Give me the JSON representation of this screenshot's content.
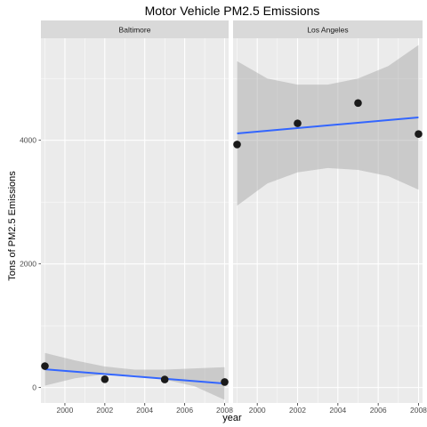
{
  "chart_data": {
    "type": "scatter",
    "title": "Motor Vehicle PM2.5 Emissions",
    "xlabel": "year",
    "ylabel": "Tons of PM2.5 Emissions",
    "xlim": [
      1998.8,
      2008.2
    ],
    "ylim": [
      -250,
      5650
    ],
    "x_ticks": [
      2000,
      2002,
      2004,
      2006,
      2008
    ],
    "y_ticks": [
      0,
      2000,
      4000
    ],
    "grid": true,
    "colors": {
      "panel_bg": "#ebebeb",
      "grid": "#ffffff",
      "strip_bg": "#d9d9d9",
      "point": "#1a1a1a",
      "trend_line": "#3366ff",
      "confidence_band": "#999999"
    },
    "panels": [
      {
        "strip": "Baltimore",
        "points": [
          {
            "x": 1999,
            "y": 347
          },
          {
            "x": 2002,
            "y": 134
          },
          {
            "x": 2005,
            "y": 130
          },
          {
            "x": 2008,
            "y": 89
          }
        ],
        "trend": {
          "x": [
            1999,
            2008
          ],
          "y": [
            295,
            65
          ]
        },
        "band": {
          "x": [
            1999,
            2000.5,
            2002,
            2003.5,
            2005,
            2006.5,
            2008
          ],
          "upper": [
            560,
            440,
            340,
            290,
            290,
            310,
            330
          ],
          "lower": [
            30,
            150,
            215,
            200,
            130,
            20,
            -200
          ]
        }
      },
      {
        "strip": "Los Angeles",
        "points": [
          {
            "x": 1999,
            "y": 3931
          },
          {
            "x": 2002,
            "y": 4274
          },
          {
            "x": 2005,
            "y": 4602
          },
          {
            "x": 2008,
            "y": 4101
          }
        ],
        "trend": {
          "x": [
            1999,
            2008
          ],
          "y": [
            4110,
            4370
          ]
        },
        "band": {
          "x": [
            1999,
            2000.5,
            2002,
            2003.5,
            2005,
            2006.5,
            2008
          ],
          "upper": [
            5280,
            5000,
            4900,
            4900,
            5000,
            5200,
            5540
          ],
          "lower": [
            2940,
            3300,
            3480,
            3550,
            3520,
            3420,
            3200
          ]
        }
      }
    ]
  }
}
